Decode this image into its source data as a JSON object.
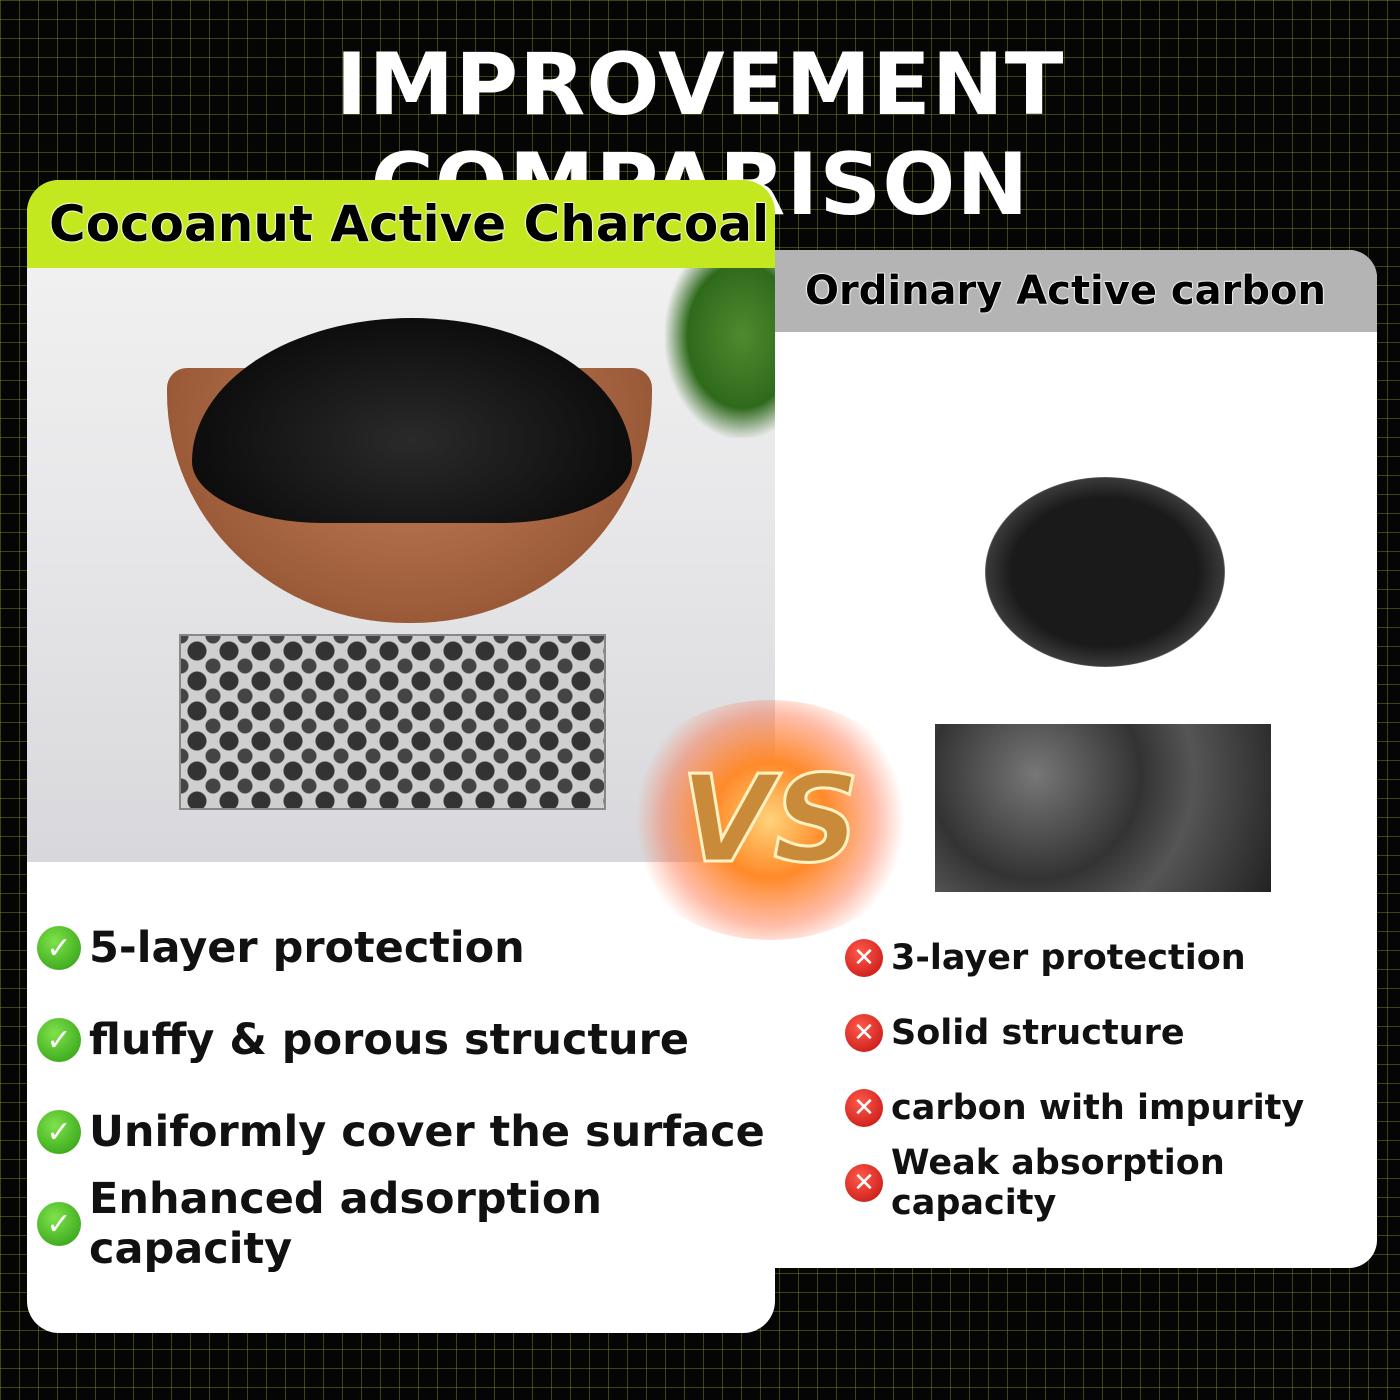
{
  "title": "IMPROVEMENT COMPARISON",
  "colors": {
    "accent_green": "#c3e81f",
    "header_grey": "#b4b4b4",
    "check": "#2a9a12",
    "cross": "#c01010"
  },
  "left": {
    "header": "Cocoanut Active Charcoal",
    "items": [
      "5-layer protection",
      "fluffy & porous structure",
      "Uniformly cover the surface",
      "Enhanced adsorption capacity"
    ],
    "icon": "check-circle-icon"
  },
  "right": {
    "header": "Ordinary Active carbon",
    "items": [
      "3-layer protection",
      "Solid structure",
      "carbon with impurity",
      "Weak absorption capacity"
    ],
    "icon": "x-circle-icon"
  },
  "vs": "VS"
}
